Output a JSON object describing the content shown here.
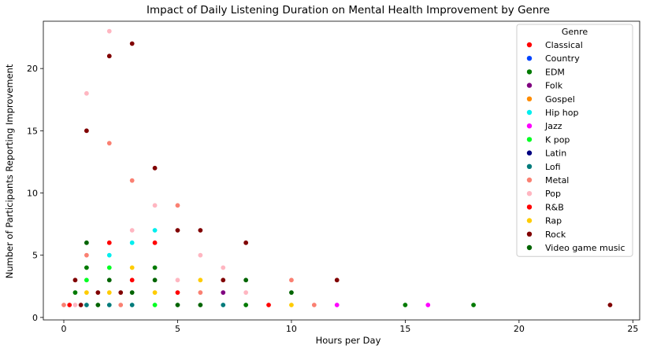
{
  "chart_data": {
    "type": "scatter",
    "title": "Impact of Daily Listening Duration on Mental Health Improvement by Genre",
    "xlabel": "Hours per Day",
    "ylabel": "Number of Participants Reporting Improvement",
    "xlim": [
      -0.9,
      25.3
    ],
    "ylim": [
      -0.2,
      23.8
    ],
    "xticks": [
      0,
      5,
      10,
      15,
      20,
      25
    ],
    "yticks": [
      0,
      5,
      10,
      15,
      20
    ],
    "grid": false,
    "legend": {
      "title": "Genre",
      "placement": "top-right"
    },
    "series": [
      {
        "name": "Classical",
        "color": "#ff0000",
        "points": [
          [
            0.25,
            1
          ],
          [
            1,
            1
          ],
          [
            1.5,
            1
          ],
          [
            2,
            6
          ],
          [
            3,
            3
          ],
          [
            4,
            6
          ],
          [
            5,
            2
          ],
          [
            9,
            1
          ]
        ]
      },
      {
        "name": "Country",
        "color": "#0044ff",
        "points": [
          [
            0.5,
            1
          ]
        ]
      },
      {
        "name": "EDM",
        "color": "#007a00",
        "points": [
          [
            0.5,
            2
          ],
          [
            1,
            4
          ],
          [
            3,
            2
          ],
          [
            4,
            4
          ],
          [
            6,
            1
          ],
          [
            8,
            1
          ],
          [
            15,
            1
          ],
          [
            18,
            1
          ]
        ]
      },
      {
        "name": "Folk",
        "color": "#800080",
        "points": [
          [
            7,
            2
          ]
        ]
      },
      {
        "name": "Gospel",
        "color": "#ff8c00",
        "points": [
          [
            2,
            2
          ]
        ]
      },
      {
        "name": "Hip hop",
        "color": "#00eeee",
        "points": [
          [
            2,
            5
          ],
          [
            3,
            6
          ],
          [
            4,
            7
          ]
        ]
      },
      {
        "name": "Jazz",
        "color": "#ff00ff",
        "points": [
          [
            12,
            1
          ],
          [
            16,
            1
          ]
        ]
      },
      {
        "name": "K pop",
        "color": "#00ff22",
        "points": [
          [
            1,
            3
          ],
          [
            2,
            4
          ],
          [
            4,
            1
          ]
        ]
      },
      {
        "name": "Latin",
        "color": "#000080",
        "points": [
          [
            0.5,
            1
          ]
        ]
      },
      {
        "name": "Lofi",
        "color": "#007b7b",
        "points": [
          [
            1,
            1
          ],
          [
            2,
            1
          ],
          [
            3,
            1
          ],
          [
            5,
            1
          ],
          [
            7,
            1
          ]
        ]
      },
      {
        "name": "Metal",
        "color": "#fa8072",
        "points": [
          [
            0,
            1
          ],
          [
            1,
            5
          ],
          [
            2,
            14
          ],
          [
            2.5,
            1
          ],
          [
            3,
            11
          ],
          [
            5,
            9
          ],
          [
            6,
            2
          ],
          [
            10,
            3
          ],
          [
            11,
            1
          ]
        ]
      },
      {
        "name": "Pop",
        "color": "#ffb6c1",
        "points": [
          [
            0.5,
            1
          ],
          [
            1,
            18
          ],
          [
            2,
            23
          ],
          [
            3,
            7
          ],
          [
            4,
            9
          ],
          [
            5,
            3
          ],
          [
            6,
            5
          ],
          [
            7,
            4
          ],
          [
            8,
            2
          ]
        ]
      },
      {
        "name": "R&B",
        "color": "#ff0000",
        "points": [
          [
            2,
            6
          ],
          [
            3,
            3
          ],
          [
            4,
            6
          ],
          [
            5,
            2
          ],
          [
            9,
            1
          ]
        ]
      },
      {
        "name": "Rap",
        "color": "#ffcc00",
        "points": [
          [
            1,
            2
          ],
          [
            2,
            2
          ],
          [
            3,
            4
          ],
          [
            4,
            2
          ],
          [
            6,
            3
          ],
          [
            10,
            1
          ]
        ]
      },
      {
        "name": "Rock",
        "color": "#800000",
        "points": [
          [
            0.5,
            3
          ],
          [
            0.75,
            1
          ],
          [
            1,
            15
          ],
          [
            1.5,
            2
          ],
          [
            2,
            21
          ],
          [
            2.5,
            2
          ],
          [
            3,
            22
          ],
          [
            4,
            12
          ],
          [
            5,
            7
          ],
          [
            6,
            7
          ],
          [
            7,
            3
          ],
          [
            8,
            6
          ],
          [
            12,
            3
          ],
          [
            24,
            1
          ]
        ]
      },
      {
        "name": "Video game music",
        "color": "#006400",
        "points": [
          [
            1,
            6
          ],
          [
            1.5,
            1
          ],
          [
            2,
            3
          ],
          [
            3,
            2
          ],
          [
            4,
            3
          ],
          [
            5,
            1
          ],
          [
            6,
            1
          ],
          [
            8,
            3
          ],
          [
            10,
            2
          ]
        ]
      }
    ]
  }
}
